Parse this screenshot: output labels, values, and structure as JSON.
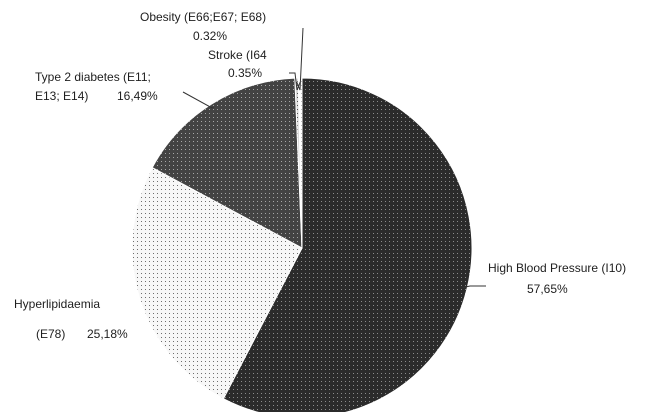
{
  "chart_data": {
    "type": "pie",
    "title": "",
    "slices": [
      {
        "name": "High Blood Pressure (I10)",
        "value": 57.65,
        "value_label": "57,65%",
        "label_lines": [
          "High Blood Pressure (I10)"
        ],
        "fill": "#2b2b2b",
        "dots": "#8c8c8c"
      },
      {
        "name": "Hyperlipidaemia (E78)",
        "value": 25.18,
        "value_label": "25,18%",
        "label_lines": [
          "Hyperlipidaemia",
          "(E78)"
        ],
        "fill": "#f7f7f7",
        "dots": "#6e6e6e"
      },
      {
        "name": "Type 2 diabetes (E11; E13; E14)",
        "value": 16.49,
        "value_label": "16,49%",
        "label_lines": [
          "Type 2 diabetes (E11;",
          "E13; E14)"
        ],
        "fill": "#434343",
        "dots": "#a8a8a8"
      },
      {
        "name": "Obesity (E66;E67; E68)",
        "value": 0.32,
        "value_label": "0.32%",
        "label_lines": [
          "Obesity (E66;E67; E68)"
        ],
        "fill": "#d9d9d9",
        "dots": "#555555"
      },
      {
        "name": "Stroke (I64)",
        "value": 0.35,
        "value_label": "0.35%",
        "label_lines": [
          "Stroke (I64"
        ],
        "fill": "#ffffff",
        "dots": "#777777"
      }
    ],
    "legend": "none",
    "start_angle_deg": 0,
    "direction": "clockwise"
  }
}
